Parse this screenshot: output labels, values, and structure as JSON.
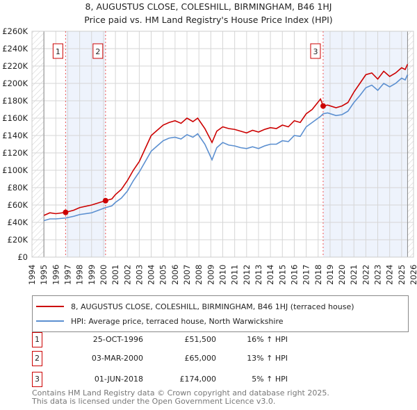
{
  "chart_data": {
    "type": "line",
    "title": "8, AUGUSTUS CLOSE, COLESHILL, BIRMINGHAM, B46 1HJ",
    "subtitle": "Price paid vs. HM Land Registry's House Price Index (HPI)",
    "xlim": [
      1994,
      2026
    ],
    "ylim": [
      0,
      260000
    ],
    "x_ticks": [
      "1994",
      "1995",
      "1996",
      "1997",
      "1998",
      "1999",
      "2000",
      "2001",
      "2002",
      "2003",
      "2004",
      "2005",
      "2006",
      "2007",
      "2008",
      "2009",
      "2010",
      "2011",
      "2012",
      "2013",
      "2014",
      "2015",
      "2016",
      "2017",
      "2018",
      "2019",
      "2020",
      "2021",
      "2022",
      "2023",
      "2024",
      "2025",
      "2026"
    ],
    "y_ticks": [
      {
        "v": 0,
        "l": "£0"
      },
      {
        "v": 20000,
        "l": "£20K"
      },
      {
        "v": 40000,
        "l": "£40K"
      },
      {
        "v": 60000,
        "l": "£60K"
      },
      {
        "v": 80000,
        "l": "£80K"
      },
      {
        "v": 100000,
        "l": "£100K"
      },
      {
        "v": 120000,
        "l": "£120K"
      },
      {
        "v": 140000,
        "l": "£140K"
      },
      {
        "v": 160000,
        "l": "£160K"
      },
      {
        "v": 180000,
        "l": "£180K"
      },
      {
        "v": 200000,
        "l": "£200K"
      },
      {
        "v": 220000,
        "l": "£220K"
      },
      {
        "v": 240000,
        "l": "£240K"
      },
      {
        "v": 260000,
        "l": "£260K"
      }
    ],
    "grid": true,
    "series": [
      {
        "name": "8, AUGUSTUS CLOSE, COLESHILL, BIRMINGHAM, B46 1HJ (terraced house)",
        "color": "#cc0000",
        "x": [
          1995,
          1995.5,
          1996,
          1996.82,
          1997.5,
          1998,
          1999,
          2000.17,
          2000.7,
          2001,
          2001.5,
          2002,
          2002.5,
          2003,
          2003.5,
          2004,
          2004.5,
          2005,
          2005.5,
          2006,
          2006.5,
          2007,
          2007.5,
          2007.9,
          2008.5,
          2009.1,
          2009.5,
          2010,
          2010.5,
          2011,
          2011.5,
          2012,
          2012.5,
          2013,
          2013.5,
          2014,
          2014.5,
          2015,
          2015.5,
          2016,
          2016.5,
          2017,
          2017.5,
          2018.2,
          2018.42,
          2018.8,
          2019.5,
          2020,
          2020.5,
          2021,
          2021.5,
          2022,
          2022.5,
          2023,
          2023.5,
          2024,
          2024.5,
          2025,
          2025.3,
          2025.5
        ],
        "y": [
          48000,
          51000,
          50000,
          51500,
          54000,
          57000,
          60000,
          65000,
          67000,
          72000,
          78000,
          88000,
          100000,
          110000,
          125000,
          140000,
          146000,
          152000,
          155000,
          157000,
          154000,
          160000,
          156000,
          160000,
          148000,
          132000,
          145000,
          150000,
          148000,
          147000,
          145000,
          143000,
          146000,
          144000,
          147000,
          149000,
          148000,
          152000,
          150000,
          157000,
          155000,
          165000,
          170000,
          182000,
          174000,
          175000,
          172000,
          174000,
          178000,
          190000,
          200000,
          210000,
          212000,
          205000,
          214000,
          208000,
          212000,
          218000,
          216000,
          222000
        ]
      },
      {
        "name": "HPI: Average price, terraced house, North Warwickshire",
        "color": "#5b8fd0",
        "x": [
          1995,
          1995.5,
          1996,
          1996.82,
          1997.5,
          1998,
          1999,
          2000.17,
          2000.7,
          2001,
          2001.5,
          2002,
          2002.5,
          2003,
          2003.5,
          2004,
          2004.5,
          2005,
          2005.5,
          2006,
          2006.5,
          2007,
          2007.5,
          2007.9,
          2008.5,
          2009.1,
          2009.5,
          2010,
          2010.5,
          2011,
          2011.5,
          2012,
          2012.5,
          2013,
          2013.5,
          2014,
          2014.5,
          2015,
          2015.5,
          2016,
          2016.5,
          2017,
          2017.5,
          2018.2,
          2018.42,
          2018.8,
          2019.5,
          2020,
          2020.5,
          2021,
          2021.5,
          2022,
          2022.5,
          2023,
          2023.5,
          2024,
          2024.5,
          2025,
          2025.3,
          2025.5
        ],
        "y": [
          42000,
          44000,
          44000,
          45000,
          47000,
          49000,
          51000,
          57000,
          59000,
          63000,
          68000,
          76000,
          88000,
          98000,
          110000,
          122000,
          128000,
          134000,
          137000,
          138000,
          136000,
          141000,
          138000,
          142000,
          130000,
          112000,
          126000,
          132000,
          129000,
          128000,
          126000,
          125000,
          127000,
          125000,
          128000,
          130000,
          130000,
          134000,
          133000,
          140000,
          139000,
          150000,
          155000,
          162000,
          165000,
          166000,
          163000,
          164000,
          168000,
          178000,
          186000,
          195000,
          198000,
          192000,
          200000,
          196000,
          200000,
          206000,
          204000,
          210000
        ]
      }
    ],
    "sales": [
      {
        "n": "1",
        "x": 1996.82,
        "price": 51500,
        "date": "25-OCT-1996",
        "price_label": "£51,500",
        "hpi": "16% ↑ HPI"
      },
      {
        "n": "2",
        "x": 2000.17,
        "price": 65000,
        "date": "03-MAR-2000",
        "price_label": "£65,000",
        "hpi": "13% ↑ HPI"
      },
      {
        "n": "3",
        "x": 2018.42,
        "price": 174000,
        "date": "01-JUN-2018",
        "price_label": "£174,000",
        "hpi": "5% ↑ HPI"
      }
    ],
    "legend_placement": "below"
  },
  "footer": {
    "line1": "Contains HM Land Registry data © Crown copyright and database right 2025.",
    "line2": "This data is licensed under the Open Government Licence v3.0."
  }
}
